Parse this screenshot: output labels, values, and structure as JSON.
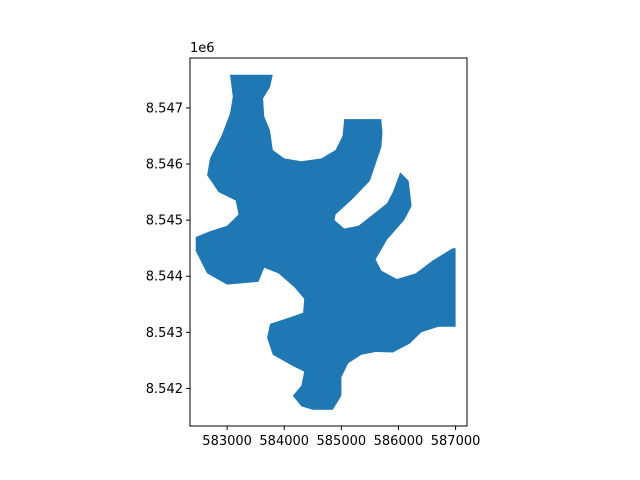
{
  "chart_data": {
    "type": "area",
    "title": "",
    "xlabel": "",
    "ylabel": "",
    "grid": false,
    "legend": "none",
    "color": "#1f77b4",
    "xlim": [
      582350,
      587200
    ],
    "ylim": [
      8541330,
      8547890
    ],
    "x_ticks": [
      583000,
      584000,
      585000,
      586000,
      587000
    ],
    "x_tick_labels": [
      "583000",
      "584000",
      "585000",
      "586000",
      "587000"
    ],
    "y_ticks": [
      8542000,
      8543000,
      8544000,
      8545000,
      8546000,
      8547000
    ],
    "y_tick_labels": [
      "8.542",
      "8.543",
      "8.544",
      "8.545",
      "8.546",
      "8.547"
    ],
    "y_offset_label": "1e6",
    "polygon": [
      [
        583050,
        8547590
      ],
      [
        583800,
        8547590
      ],
      [
        583750,
        8547370
      ],
      [
        583630,
        8547170
      ],
      [
        583650,
        8546850
      ],
      [
        583750,
        8546600
      ],
      [
        583800,
        8546250
      ],
      [
        584000,
        8546100
      ],
      [
        584300,
        8546050
      ],
      [
        584650,
        8546100
      ],
      [
        584900,
        8546250
      ],
      [
        585020,
        8546500
      ],
      [
        585050,
        8546800
      ],
      [
        585700,
        8546800
      ],
      [
        585720,
        8546550
      ],
      [
        585700,
        8546300
      ],
      [
        585500,
        8545700
      ],
      [
        585200,
        8545380
      ],
      [
        584900,
        8545100
      ],
      [
        584880,
        8545000
      ],
      [
        585050,
        8544850
      ],
      [
        585300,
        8544900
      ],
      [
        585550,
        8545100
      ],
      [
        585800,
        8545300
      ],
      [
        585900,
        8545500
      ],
      [
        586030,
        8545850
      ],
      [
        586180,
        8545700
      ],
      [
        586230,
        8545250
      ],
      [
        586100,
        8545000
      ],
      [
        585800,
        8544650
      ],
      [
        585600,
        8544300
      ],
      [
        585700,
        8544100
      ],
      [
        585970,
        8543950
      ],
      [
        586300,
        8544050
      ],
      [
        586600,
        8544280
      ],
      [
        586950,
        8544500
      ],
      [
        587000,
        8544500
      ],
      [
        587000,
        8543100
      ],
      [
        586700,
        8543100
      ],
      [
        586400,
        8543000
      ],
      [
        586200,
        8542800
      ],
      [
        585900,
        8542640
      ],
      [
        585600,
        8542650
      ],
      [
        585350,
        8542600
      ],
      [
        585120,
        8542450
      ],
      [
        585000,
        8542200
      ],
      [
        585000,
        8541870
      ],
      [
        584850,
        8541620
      ],
      [
        584500,
        8541620
      ],
      [
        584300,
        8541680
      ],
      [
        584150,
        8541870
      ],
      [
        584300,
        8542050
      ],
      [
        584350,
        8542300
      ],
      [
        584150,
        8542400
      ],
      [
        583800,
        8542600
      ],
      [
        583700,
        8542900
      ],
      [
        583750,
        8543150
      ],
      [
        584050,
        8543250
      ],
      [
        584330,
        8543350
      ],
      [
        584350,
        8543600
      ],
      [
        584180,
        8543800
      ],
      [
        583900,
        8544050
      ],
      [
        583650,
        8544150
      ],
      [
        583550,
        8543900
      ],
      [
        583000,
        8543850
      ],
      [
        582650,
        8544050
      ],
      [
        582450,
        8544450
      ],
      [
        582450,
        8544700
      ],
      [
        582700,
        8544800
      ],
      [
        583000,
        8544900
      ],
      [
        583200,
        8545100
      ],
      [
        583150,
        8545350
      ],
      [
        582850,
        8545500
      ],
      [
        582650,
        8545800
      ],
      [
        582700,
        8546100
      ],
      [
        582900,
        8546500
      ],
      [
        583050,
        8546900
      ],
      [
        583100,
        8547200
      ],
      [
        583050,
        8547590
      ]
    ]
  }
}
